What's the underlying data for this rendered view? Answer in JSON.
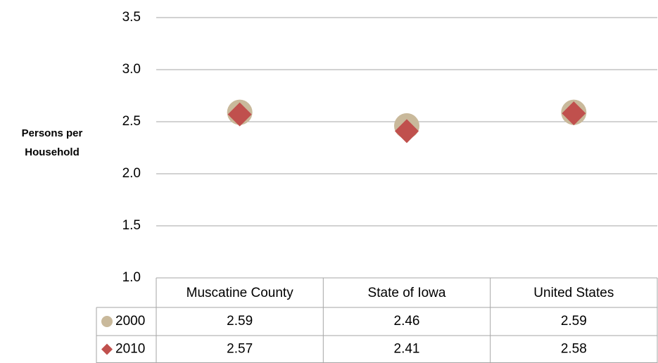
{
  "chart_data": {
    "type": "scatter",
    "y_axis_label": "Persons per Household",
    "categories": [
      "Muscatine County",
      "State of Iowa",
      "United States"
    ],
    "series": [
      {
        "name": "2000",
        "color": "#c9b99b",
        "marker": "circle",
        "values": [
          2.59,
          2.46,
          2.59
        ]
      },
      {
        "name": "2010",
        "color": "#c0504d",
        "marker": "diamond",
        "values": [
          2.57,
          2.41,
          2.58
        ]
      }
    ],
    "ylim": [
      1.0,
      3.5
    ],
    "yticks": [
      {
        "value": 1,
        "label": "1.0"
      },
      1.5,
      {
        "value": 2,
        "label": "2.0"
      },
      2.5,
      {
        "value": 3,
        "label": "3.0"
      },
      3.5
    ],
    "grid": true,
    "data_table": true
  }
}
